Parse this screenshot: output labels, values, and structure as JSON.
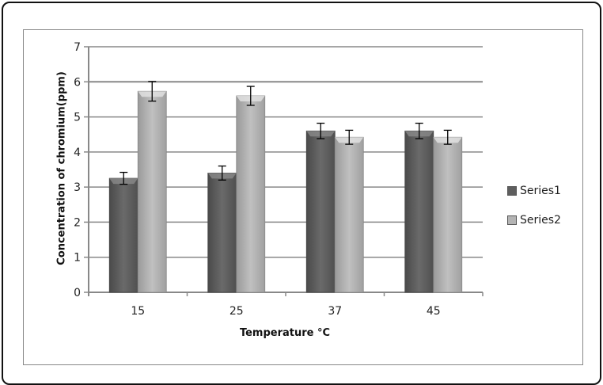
{
  "chart_data": {
    "type": "bar",
    "title": "",
    "xlabel": "Temperature °C",
    "ylabel": "Concentration of chromium(ppm)",
    "categories": [
      "15",
      "25",
      "37",
      "45"
    ],
    "series": [
      {
        "name": "Series1",
        "values": [
          3.25,
          3.4,
          4.6,
          4.6
        ],
        "errors": [
          0.17,
          0.2,
          0.22,
          0.22
        ],
        "color": "#5e5e5e"
      },
      {
        "name": "Series2",
        "values": [
          5.73,
          5.6,
          4.42,
          4.42
        ],
        "errors": [
          0.28,
          0.27,
          0.2,
          0.2
        ],
        "color": "#b4b4b4"
      }
    ],
    "ylim": [
      0,
      7
    ],
    "yticks": [
      "0",
      "1",
      "2",
      "3",
      "4",
      "5",
      "6",
      "7"
    ],
    "grid": true,
    "legend_position": "right"
  }
}
